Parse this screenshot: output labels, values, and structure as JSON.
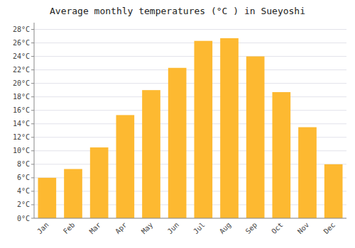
{
  "chart_data": {
    "type": "bar",
    "title": "Average monthly temperatures (°C ) in Sueyoshi",
    "categories": [
      "Jan",
      "Feb",
      "Mar",
      "Apr",
      "May",
      "Jun",
      "Jul",
      "Aug",
      "Sep",
      "Oct",
      "Nov",
      "Dec"
    ],
    "values": [
      6.0,
      7.3,
      10.5,
      15.3,
      19.0,
      22.3,
      26.3,
      26.7,
      24.0,
      18.7,
      13.5,
      8.0
    ],
    "color": "#FDB931",
    "ylim": [
      0,
      29
    ],
    "yticks": [
      {
        "value": 0,
        "label": "0°C"
      },
      {
        "value": 2,
        "label": "2°C"
      },
      {
        "value": 4,
        "label": "4°C"
      },
      {
        "value": 6,
        "label": "6°C"
      },
      {
        "value": 8,
        "label": "8°C"
      },
      {
        "value": 10,
        "label": "10°C"
      },
      {
        "value": 12,
        "label": "12°C"
      },
      {
        "value": 14,
        "label": "14°C"
      },
      {
        "value": 16,
        "label": "16°C"
      },
      {
        "value": 18,
        "label": "18°C"
      },
      {
        "value": 20,
        "label": "20°C"
      },
      {
        "value": 22,
        "label": "22°C"
      },
      {
        "value": 24,
        "label": "24°C"
      },
      {
        "value": 26,
        "label": "26°C"
      },
      {
        "value": 28,
        "label": "28°C"
      }
    ],
    "grid": true
  }
}
